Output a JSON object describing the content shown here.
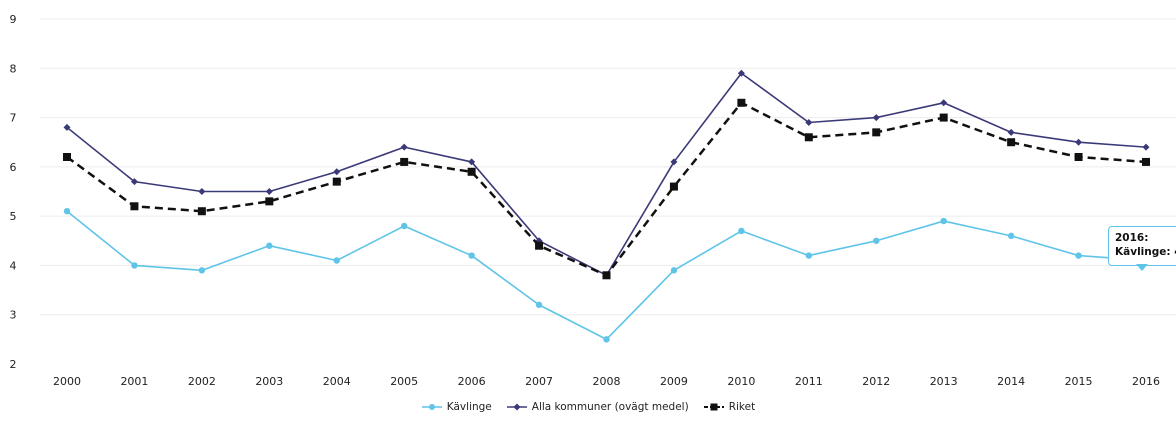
{
  "chart_data": {
    "type": "line",
    "categories": [
      "2000",
      "2001",
      "2002",
      "2003",
      "2004",
      "2005",
      "2006",
      "2007",
      "2008",
      "2009",
      "2010",
      "2011",
      "2012",
      "2013",
      "2014",
      "2015",
      "2016"
    ],
    "ylim": [
      2,
      9
    ],
    "yticks": [
      "2",
      "3",
      "4",
      "5",
      "6",
      "7",
      "8",
      "9"
    ],
    "grid": true,
    "legend_position": "bottom",
    "series": [
      {
        "name": "Kävlinge",
        "color": "#5fc4e8",
        "marker": "circle",
        "dash": "solid",
        "values": [
          5.1,
          4.0,
          3.9,
          4.4,
          4.1,
          4.8,
          4.2,
          3.2,
          2.5,
          3.9,
          4.7,
          4.2,
          4.5,
          4.9,
          4.6,
          4.2,
          4.1
        ]
      },
      {
        "name": "Alla kommuner (ovägt medel)",
        "color": "#3b3a78",
        "marker": "diamond",
        "dash": "solid",
        "values": [
          6.8,
          5.7,
          5.5,
          5.5,
          5.9,
          6.4,
          6.1,
          4.5,
          3.8,
          6.1,
          7.9,
          6.9,
          7.0,
          7.3,
          6.7,
          6.5,
          6.4
        ]
      },
      {
        "name": "Riket",
        "color": "#111111",
        "marker": "square",
        "dash": "dashed",
        "values": [
          6.2,
          5.2,
          5.1,
          5.3,
          5.7,
          6.1,
          5.9,
          4.4,
          3.8,
          5.6,
          7.3,
          6.6,
          6.7,
          7.0,
          6.5,
          6.2,
          6.1
        ]
      }
    ],
    "tooltip": {
      "line1": "2016:",
      "line2": "Kävlinge: 4"
    }
  }
}
